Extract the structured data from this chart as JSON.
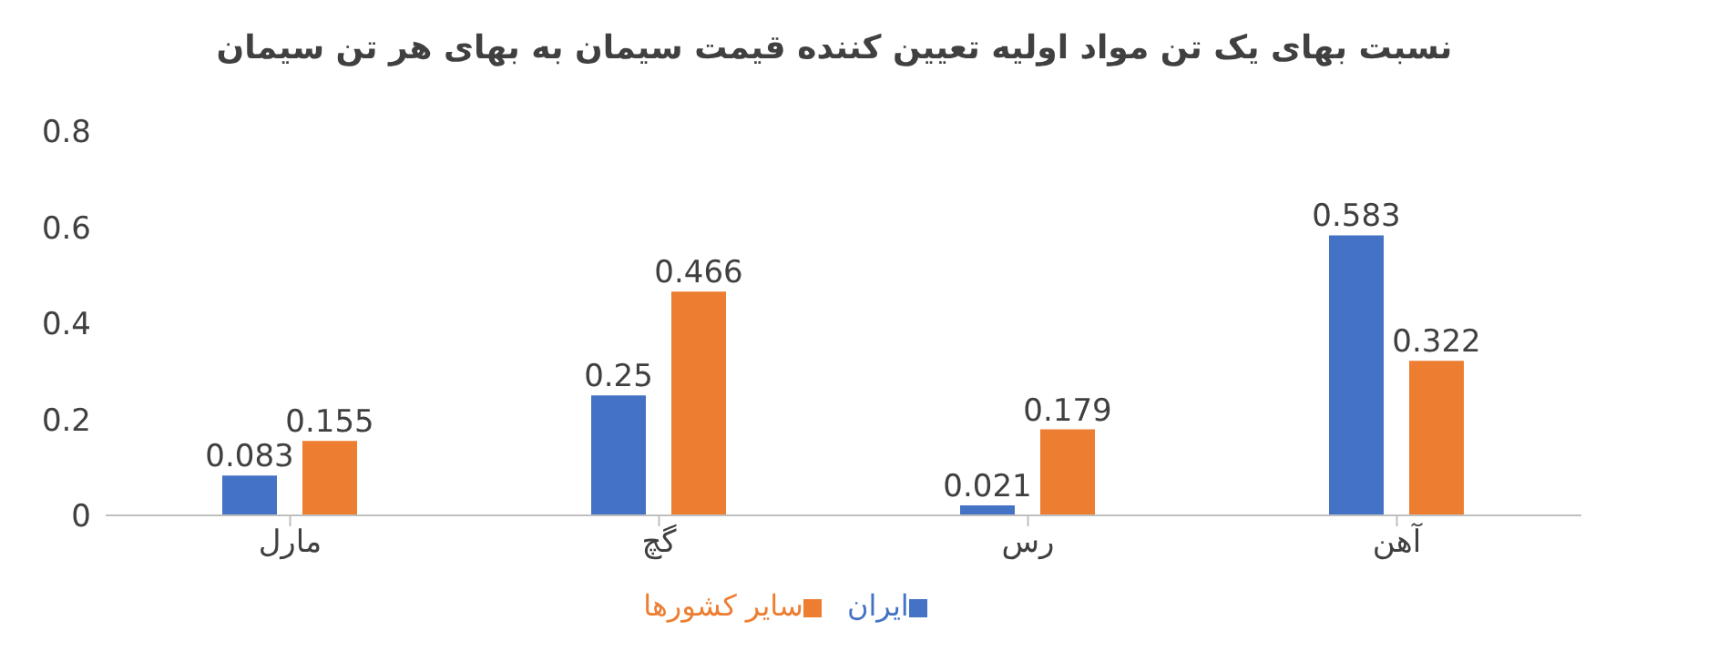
{
  "chart_data": {
    "type": "bar",
    "title": "نسبت بهای یک تن مواد اولیه تعیین کننده قیمت سیمان به بهای هر تن سیمان",
    "categories": [
      "مارل",
      "گچ",
      "رس",
      "آهن"
    ],
    "series": [
      {
        "name": "ایران",
        "color": "#4472c4",
        "values": [
          0.083,
          0.25,
          0.021,
          0.583
        ]
      },
      {
        "name": "سایر کشورها",
        "color": "#ed7d31",
        "values": [
          0.155,
          0.466,
          0.179,
          0.322
        ]
      }
    ],
    "ylim": [
      0,
      0.8
    ],
    "yticks": [
      0,
      0.2,
      0.4,
      0.6,
      0.8
    ],
    "grid": false,
    "legend": "bottom",
    "data_labels": true
  }
}
